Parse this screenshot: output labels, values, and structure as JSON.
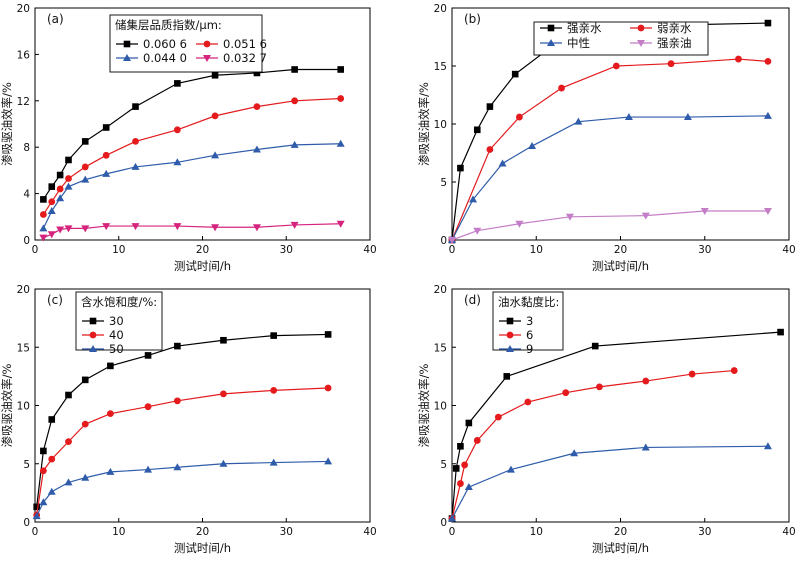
{
  "chart_data": [
    {
      "type": "line",
      "panel": "(a)",
      "xlabel": "测试时间/h",
      "ylabel": "渗吸驱油效率/%",
      "xlim": [
        0,
        40
      ],
      "ylim": [
        0,
        20
      ],
      "xticks": [
        0,
        10,
        20,
        30,
        40
      ],
      "yticks": [
        0,
        4,
        8,
        12,
        16,
        20
      ],
      "legend_title": "储集层品质指数/μm:",
      "legend_position": "top-center",
      "legend_columns": 2,
      "series": [
        {
          "name": "0.060 6",
          "color": "#000000",
          "marker": "square",
          "x": [
            1,
            2,
            3,
            4,
            6,
            8.5,
            12,
            17,
            21.5,
            26.5,
            31,
            36.5
          ],
          "y": [
            3.5,
            4.6,
            5.6,
            6.9,
            8.5,
            9.7,
            11.5,
            13.5,
            14.2,
            14.4,
            14.7,
            14.7
          ]
        },
        {
          "name": "0.051 6",
          "color": "#e41a1c",
          "marker": "circle",
          "x": [
            1,
            2,
            3,
            4,
            6,
            8.5,
            12,
            17,
            21.5,
            26.5,
            31,
            36.5
          ],
          "y": [
            2.2,
            3.3,
            4.4,
            5.3,
            6.3,
            7.3,
            8.5,
            9.5,
            10.7,
            11.5,
            12.0,
            12.2
          ]
        },
        {
          "name": "0.044 0",
          "color": "#2f5caa",
          "marker": "triangle-up",
          "x": [
            1,
            2,
            3,
            4,
            6,
            8.5,
            12,
            17,
            21.5,
            26.5,
            31,
            36.5
          ],
          "y": [
            1.0,
            2.5,
            3.6,
            4.6,
            5.2,
            5.7,
            6.3,
            6.7,
            7.3,
            7.8,
            8.2,
            8.3
          ]
        },
        {
          "name": "0.032 7",
          "color": "#d6247e",
          "marker": "triangle-down",
          "x": [
            1,
            2,
            3,
            4,
            6,
            8.5,
            12,
            17,
            21.5,
            26.5,
            31,
            36.5
          ],
          "y": [
            0.2,
            0.5,
            0.9,
            1.0,
            1.0,
            1.2,
            1.2,
            1.2,
            1.1,
            1.1,
            1.3,
            1.4
          ]
        }
      ]
    },
    {
      "type": "line",
      "panel": "(b)",
      "xlabel": "测试时间/h",
      "ylabel": "渗吸驱油效率/%",
      "xlim": [
        0,
        40
      ],
      "ylim": [
        0,
        20
      ],
      "xticks": [
        0,
        10,
        20,
        30,
        40
      ],
      "yticks": [
        0,
        5,
        10,
        15,
        20
      ],
      "legend_position": "top-right",
      "legend_columns": 2,
      "series": [
        {
          "name": "强亲水",
          "color": "#000000",
          "marker": "square",
          "x": [
            0,
            1,
            3,
            4.5,
            7.5,
            11.5,
            16,
            24.5,
            37.5
          ],
          "y": [
            0,
            6.2,
            9.5,
            11.5,
            14.3,
            16.5,
            17.8,
            18.5,
            18.7
          ]
        },
        {
          "name": "弱亲水",
          "color": "#e41a1c",
          "marker": "circle",
          "x": [
            0,
            4.5,
            8,
            13,
            19.5,
            26,
            34,
            37.5
          ],
          "y": [
            0,
            7.8,
            10.6,
            13.1,
            15.0,
            15.2,
            15.6,
            15.4
          ]
        },
        {
          "name": "中性",
          "color": "#2f5caa",
          "marker": "triangle-up",
          "x": [
            0,
            2.5,
            6,
            9.5,
            15,
            21,
            28,
            37.5
          ],
          "y": [
            0,
            3.5,
            6.6,
            8.1,
            10.2,
            10.6,
            10.6,
            10.7
          ]
        },
        {
          "name": "强亲油",
          "color": "#c47ec7",
          "marker": "triangle-down",
          "x": [
            0,
            3,
            8,
            14,
            23,
            30,
            37.5
          ],
          "y": [
            0,
            0.8,
            1.4,
            2.0,
            2.1,
            2.5,
            2.5
          ]
        }
      ]
    },
    {
      "type": "line",
      "panel": "(c)",
      "xlabel": "测试时间/h",
      "ylabel": "渗吸驱油效率/%",
      "xlim": [
        0,
        40
      ],
      "ylim": [
        0,
        20
      ],
      "xticks": [
        0,
        10,
        20,
        30,
        40
      ],
      "yticks": [
        0,
        5,
        10,
        15,
        20
      ],
      "legend_title": "含水饱和度/%:",
      "legend_position": "top-left",
      "legend_columns": 1,
      "series": [
        {
          "name": "30",
          "color": "#000000",
          "marker": "square",
          "x": [
            0.2,
            1,
            2,
            4,
            6,
            9,
            13.5,
            17,
            22.5,
            28.5,
            35
          ],
          "y": [
            1.3,
            6.1,
            8.8,
            10.9,
            12.2,
            13.4,
            14.3,
            15.1,
            15.6,
            16.0,
            16.1
          ]
        },
        {
          "name": "40",
          "color": "#e41a1c",
          "marker": "circle",
          "x": [
            0.2,
            1,
            2,
            4,
            6,
            9,
            13.5,
            17,
            22.5,
            28.5,
            35
          ],
          "y": [
            0.6,
            4.4,
            5.4,
            6.9,
            8.4,
            9.3,
            9.9,
            10.4,
            11.0,
            11.3,
            11.5
          ]
        },
        {
          "name": "50",
          "color": "#2f5caa",
          "marker": "triangle-up",
          "x": [
            0.2,
            1,
            2,
            4,
            6,
            9,
            13.5,
            17,
            22.5,
            28.5,
            35
          ],
          "y": [
            0.5,
            1.7,
            2.6,
            3.4,
            3.8,
            4.3,
            4.5,
            4.7,
            5.0,
            5.1,
            5.2
          ]
        }
      ]
    },
    {
      "type": "line",
      "panel": "(d)",
      "xlabel": "测试时间/h",
      "ylabel": "渗吸驱油效率/%",
      "xlim": [
        0,
        40
      ],
      "ylim": [
        0,
        20
      ],
      "xticks": [
        0,
        10,
        20,
        30,
        40
      ],
      "yticks": [
        0,
        5,
        10,
        15,
        20
      ],
      "legend_title": "油水黏度比:",
      "legend_position": "top-left",
      "legend_columns": 1,
      "series": [
        {
          "name": "3",
          "color": "#000000",
          "marker": "square",
          "x": [
            0,
            0.5,
            1,
            2,
            6.5,
            17,
            39
          ],
          "y": [
            0.3,
            4.6,
            6.5,
            8.5,
            12.5,
            15.1,
            16.3
          ]
        },
        {
          "name": "6",
          "color": "#e41a1c",
          "marker": "circle",
          "x": [
            0,
            1,
            1.5,
            3,
            5.5,
            9,
            13.5,
            17.5,
            23,
            28.5,
            33.5
          ],
          "y": [
            0.3,
            3.3,
            4.9,
            7.0,
            9.0,
            10.3,
            11.1,
            11.6,
            12.1,
            12.7,
            13.0
          ]
        },
        {
          "name": "9",
          "color": "#2f5caa",
          "marker": "triangle-up",
          "x": [
            0,
            2,
            7,
            14.5,
            23,
            37.5
          ],
          "y": [
            0.3,
            3.0,
            4.5,
            5.9,
            6.4,
            6.5
          ]
        }
      ]
    }
  ]
}
